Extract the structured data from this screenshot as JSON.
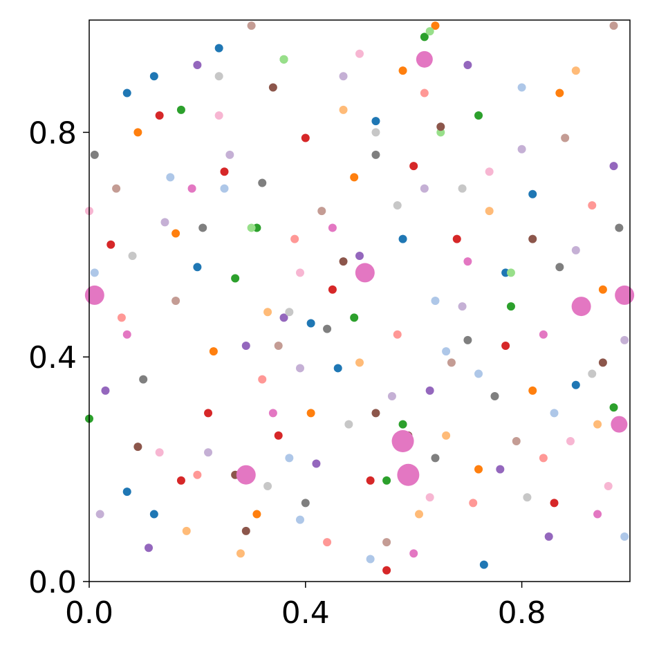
{
  "chart_data": {
    "type": "scatter",
    "xlim": [
      0,
      1
    ],
    "ylim": [
      0,
      1
    ],
    "xticks": [
      {
        "value": 0,
        "label": "0.0"
      },
      0.4,
      0.8
    ],
    "yticks": [
      {
        "value": 0,
        "label": "0.0"
      },
      0.4,
      0.8
    ],
    "series": [
      {
        "color": "#1f77b4",
        "x": [
          0.07,
          0.12,
          0.24,
          0.41,
          0.46,
          0.58,
          0.73,
          0.82,
          0.9,
          0.12,
          0.2,
          0.53,
          0.77,
          0.07
        ],
        "y": [
          0.87,
          0.9,
          0.95,
          0.46,
          0.38,
          0.61,
          0.03,
          0.69,
          0.35,
          0.12,
          0.56,
          0.82,
          0.55,
          0.16
        ]
      },
      {
        "color": "#aec7e8",
        "x": [
          0.01,
          0.15,
          0.37,
          0.52,
          0.66,
          0.8,
          0.86,
          0.99,
          0.39,
          0.64,
          0.72,
          0.25
        ],
        "y": [
          0.55,
          0.72,
          0.22,
          0.04,
          0.41,
          0.88,
          0.3,
          0.08,
          0.11,
          0.5,
          0.37,
          0.7
        ]
      },
      {
        "color": "#ff7f0e",
        "x": [
          0.09,
          0.23,
          0.31,
          0.49,
          0.58,
          0.72,
          0.87,
          0.95,
          0.64,
          0.41,
          0.16,
          0.82
        ],
        "y": [
          0.8,
          0.41,
          0.12,
          0.72,
          0.91,
          0.2,
          0.87,
          0.52,
          0.99,
          0.3,
          0.62,
          0.34
        ]
      },
      {
        "color": "#ffbb78",
        "x": [
          0.18,
          0.33,
          0.5,
          0.61,
          0.74,
          0.9,
          0.94,
          0.28,
          0.47,
          0.66
        ],
        "y": [
          0.09,
          0.48,
          0.39,
          0.12,
          0.66,
          0.91,
          0.28,
          0.05,
          0.84,
          0.26
        ]
      },
      {
        "color": "#2ca02c",
        "x": [
          0.0,
          0.17,
          0.27,
          0.36,
          0.49,
          0.58,
          0.62,
          0.78,
          0.97,
          0.31,
          0.55,
          0.72
        ],
        "y": [
          0.29,
          0.84,
          0.54,
          0.93,
          0.47,
          0.28,
          0.97,
          0.49,
          0.31,
          0.63,
          0.18,
          0.83
        ]
      },
      {
        "color": "#98df8a",
        "x": [
          0.3,
          0.36,
          0.65,
          0.63,
          0.78
        ],
        "y": [
          0.63,
          0.93,
          0.8,
          0.98,
          0.55
        ]
      },
      {
        "color": "#d62728",
        "x": [
          0.04,
          0.13,
          0.22,
          0.35,
          0.4,
          0.52,
          0.6,
          0.68,
          0.77,
          0.86,
          0.45,
          0.25,
          0.55,
          0.17
        ],
        "y": [
          0.6,
          0.83,
          0.3,
          0.26,
          0.79,
          0.18,
          0.74,
          0.61,
          0.42,
          0.14,
          0.52,
          0.73,
          0.02,
          0.18
        ]
      },
      {
        "color": "#ff9896",
        "x": [
          0.06,
          0.2,
          0.38,
          0.44,
          0.57,
          0.71,
          0.84,
          0.93,
          0.32,
          0.62
        ],
        "y": [
          0.47,
          0.19,
          0.61,
          0.07,
          0.44,
          0.14,
          0.22,
          0.67,
          0.36,
          0.87
        ]
      },
      {
        "color": "#9467bd",
        "x": [
          0.03,
          0.11,
          0.2,
          0.29,
          0.42,
          0.5,
          0.63,
          0.7,
          0.85,
          0.97,
          0.36,
          0.76
        ],
        "y": [
          0.34,
          0.06,
          0.92,
          0.42,
          0.21,
          0.58,
          0.34,
          0.92,
          0.08,
          0.74,
          0.47,
          0.2
        ]
      },
      {
        "color": "#c5b0d5",
        "x": [
          0.02,
          0.14,
          0.26,
          0.39,
          0.47,
          0.56,
          0.69,
          0.8,
          0.9,
          0.99,
          0.62,
          0.22
        ],
        "y": [
          0.12,
          0.64,
          0.76,
          0.38,
          0.9,
          0.33,
          0.49,
          0.77,
          0.59,
          0.43,
          0.7,
          0.23
        ]
      },
      {
        "color": "#8c564b",
        "x": [
          0.09,
          0.27,
          0.34,
          0.47,
          0.53,
          0.65,
          0.82,
          0.95,
          0.29,
          0.59
        ],
        "y": [
          0.24,
          0.19,
          0.88,
          0.57,
          0.3,
          0.81,
          0.61,
          0.39,
          0.09,
          0.26
        ]
      },
      {
        "color": "#c49c94",
        "x": [
          0.05,
          0.16,
          0.3,
          0.43,
          0.55,
          0.67,
          0.79,
          0.88,
          0.97,
          0.35
        ],
        "y": [
          0.7,
          0.5,
          0.99,
          0.66,
          0.07,
          0.39,
          0.25,
          0.79,
          0.99,
          0.42
        ]
      },
      {
        "color": "#e377c2",
        "x": [
          0.07,
          0.19,
          0.34,
          0.45,
          0.6,
          0.7,
          0.84,
          0.94,
          0.01,
          0.51,
          0.91,
          0.99,
          0.58,
          0.59,
          0.29,
          0.98,
          0.62
        ],
        "y": [
          0.44,
          0.7,
          0.3,
          0.63,
          0.05,
          0.57,
          0.44,
          0.12,
          0.51,
          0.55,
          0.49,
          0.51,
          0.25,
          0.19,
          0.19,
          0.28,
          0.93
        ],
        "sizes": [
          6,
          6,
          6,
          6,
          6,
          6,
          6,
          6,
          14,
          14,
          14,
          14,
          16,
          16,
          14,
          12,
          12
        ]
      },
      {
        "color": "#f7b6d2",
        "x": [
          0.0,
          0.13,
          0.24,
          0.39,
          0.5,
          0.63,
          0.74,
          0.89,
          0.96
        ],
        "y": [
          0.66,
          0.23,
          0.83,
          0.55,
          0.94,
          0.15,
          0.73,
          0.25,
          0.17
        ]
      },
      {
        "color": "#7f7f7f",
        "x": [
          0.01,
          0.1,
          0.21,
          0.32,
          0.44,
          0.53,
          0.64,
          0.75,
          0.87,
          0.98,
          0.4,
          0.7
        ],
        "y": [
          0.76,
          0.36,
          0.63,
          0.71,
          0.45,
          0.76,
          0.22,
          0.33,
          0.56,
          0.63,
          0.14,
          0.43
        ]
      },
      {
        "color": "#c7c7c7",
        "x": [
          0.08,
          0.24,
          0.37,
          0.48,
          0.57,
          0.69,
          0.81,
          0.93,
          0.53,
          0.33
        ],
        "y": [
          0.58,
          0.9,
          0.48,
          0.28,
          0.67,
          0.7,
          0.15,
          0.37,
          0.8,
          0.17
        ]
      }
    ]
  }
}
